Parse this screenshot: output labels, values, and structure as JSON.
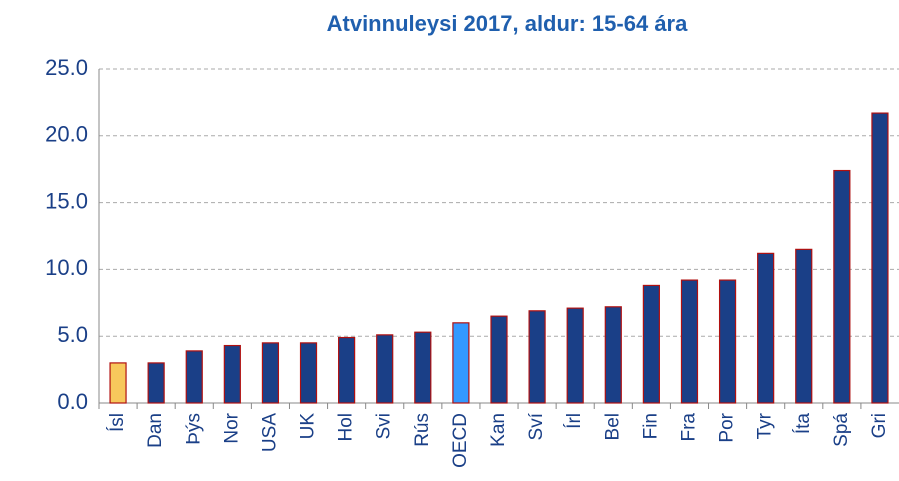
{
  "chart_data": {
    "type": "bar",
    "title": "Atvinnuleysi 2017, aldur: 15-64 ára",
    "categories": [
      "Ísl",
      "Dan",
      "Þýs",
      "Nor",
      "USA",
      "UK",
      "Hol",
      "Svi",
      "Rús",
      "OECD",
      "Kan",
      "Sví",
      "Írl",
      "Bel",
      "Fin",
      "Fra",
      "Por",
      "Tyr",
      "Íta",
      "Spá",
      "Gri"
    ],
    "values": [
      3.0,
      3.0,
      3.9,
      4.3,
      4.5,
      4.5,
      4.9,
      5.1,
      5.3,
      6.0,
      6.5,
      6.9,
      7.1,
      7.2,
      8.8,
      9.2,
      9.2,
      11.2,
      11.5,
      17.4,
      21.7
    ],
    "colors": [
      "#f7c85c",
      "#1a3f87",
      "#1a3f87",
      "#1a3f87",
      "#1a3f87",
      "#1a3f87",
      "#1a3f87",
      "#1a3f87",
      "#1a3f87",
      "#3399ff",
      "#1a3f87",
      "#1a3f87",
      "#1a3f87",
      "#1a3f87",
      "#1a3f87",
      "#1a3f87",
      "#1a3f87",
      "#1a3f87",
      "#1a3f87",
      "#1a3f87",
      "#1a3f87"
    ],
    "edgecolor": "#b01010",
    "ylim": [
      0,
      25
    ],
    "yticks": [
      {
        "value": 0,
        "label": "0.0"
      },
      {
        "value": 5,
        "label": "5.0"
      },
      {
        "value": 10,
        "label": "10.0"
      },
      {
        "value": 15,
        "label": "15.0"
      },
      {
        "value": 20,
        "label": "20.0"
      },
      {
        "value": 25,
        "label": "25.0"
      }
    ],
    "grid": true
  }
}
